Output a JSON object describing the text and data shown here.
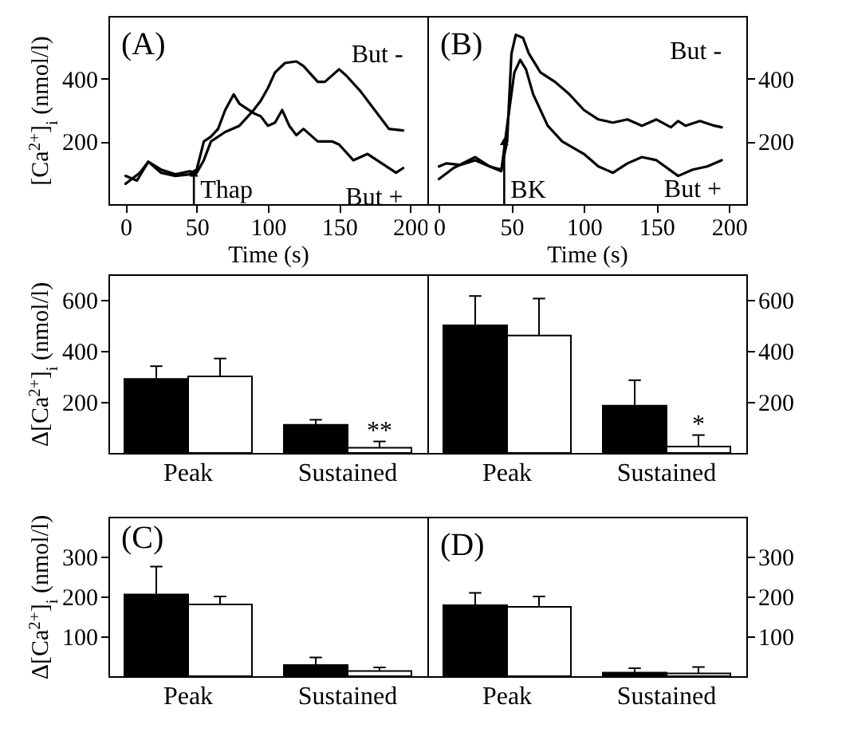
{
  "chart_data": [
    {
      "type": "line",
      "title": "(A)",
      "xlabel": "Time (s)",
      "ylabel": "[Ca$^{2+}$]$_{i}$ (nmol/l)",
      "xlim": [
        -12,
        212
      ],
      "xticks": [
        0,
        50,
        100,
        150,
        200
      ],
      "ylim": [
        0,
        600
      ],
      "yticks": [
        200,
        400
      ],
      "series": [
        {
          "name": "But -",
          "color": "#000000",
          "x": [
            0,
            10,
            16,
            25,
            35,
            45,
            50,
            55,
            60,
            70,
            80,
            90,
            95,
            100,
            105,
            112,
            120,
            125,
            135,
            140,
            150,
            155,
            165,
            175,
            185,
            195
          ],
          "values": [
            65,
            100,
            135,
            110,
            95,
            105,
            100,
            140,
            200,
            230,
            250,
            300,
            330,
            370,
            420,
            450,
            455,
            440,
            390,
            390,
            430,
            410,
            360,
            300,
            240,
            235
          ]
        },
        {
          "name": "But +",
          "color": "#000000",
          "x": [
            0,
            8,
            16,
            25,
            35,
            45,
            50,
            55,
            60,
            65,
            70,
            76,
            80,
            90,
            95,
            100,
            105,
            110,
            115,
            120,
            125,
            135,
            145,
            150,
            160,
            170,
            180,
            190,
            195
          ],
          "values": [
            90,
            75,
            135,
            100,
            90,
            95,
            110,
            200,
            215,
            240,
            300,
            350,
            320,
            290,
            280,
            250,
            260,
            300,
            250,
            220,
            240,
            200,
            200,
            190,
            140,
            160,
            130,
            100,
            115
          ]
        }
      ],
      "annotations": [
        {
          "text": "Thap",
          "x": 48,
          "y": 100
        }
      ]
    },
    {
      "type": "line",
      "title": "(B)",
      "xlabel": "Time (s)",
      "xlim": [
        -8,
        212
      ],
      "xticks": [
        0,
        50,
        100,
        150,
        200
      ],
      "ylim": [
        0,
        600
      ],
      "yticks": [
        200,
        400
      ],
      "series": [
        {
          "name": "But -",
          "color": "#000000",
          "x": [
            0,
            5,
            15,
            25,
            35,
            43,
            47,
            50,
            53,
            58,
            62,
            70,
            80,
            90,
            100,
            110,
            120,
            130,
            140,
            150,
            160,
            165,
            170,
            180,
            190,
            195
          ],
          "values": [
            120,
            130,
            125,
            140,
            120,
            110,
            200,
            480,
            540,
            530,
            480,
            420,
            390,
            350,
            300,
            270,
            260,
            270,
            250,
            270,
            245,
            265,
            250,
            265,
            250,
            245
          ]
        },
        {
          "name": "But +",
          "color": "#000000",
          "x": [
            0,
            10,
            25,
            35,
            43,
            47,
            52,
            56,
            60,
            65,
            75,
            85,
            100,
            110,
            120,
            130,
            140,
            150,
            165,
            175,
            185,
            195
          ],
          "values": [
            80,
            115,
            150,
            120,
            105,
            250,
            420,
            460,
            430,
            350,
            250,
            200,
            160,
            120,
            100,
            130,
            150,
            140,
            90,
            110,
            120,
            140
          ]
        }
      ],
      "annotations": [
        {
          "text": "BK",
          "x": 45,
          "y": 200
        }
      ]
    },
    {
      "type": "bar",
      "ylabel": "Δ[Ca$^{2+}$]$_{i}$ (nmol/l)",
      "categories": [
        "Peak",
        "Sustained"
      ],
      "ylim": [
        0,
        700
      ],
      "yticks": [
        200,
        400,
        600
      ],
      "series": [
        {
          "color": "#000000",
          "values": [
            290,
            110
          ],
          "errors": [
            [
              290,
              340
            ],
            [
              110,
              130
            ]
          ]
        },
        {
          "color": "#ffffff",
          "values": [
            300,
            20
          ],
          "errors": [
            [
              300,
              370
            ],
            [
              20,
              45
            ]
          ]
        }
      ],
      "annotations": [
        {
          "text": "**",
          "x": "Sustained",
          "y": 50
        }
      ]
    },
    {
      "type": "bar",
      "categories": [
        "Peak",
        "Sustained"
      ],
      "ylim": [
        0,
        700
      ],
      "yticks": [
        200,
        400,
        600
      ],
      "series": [
        {
          "color": "#000000",
          "values": [
            500,
            185
          ],
          "errors": [
            [
              500,
              615
            ],
            [
              185,
              285
            ]
          ]
        },
        {
          "color": "#ffffff",
          "values": [
            460,
            25
          ],
          "errors": [
            [
              460,
              605
            ],
            [
              25,
              70
            ]
          ]
        }
      ],
      "annotations": [
        {
          "text": "*",
          "x": "Sustained",
          "y": 75
        }
      ]
    },
    {
      "type": "bar",
      "title": "(C)",
      "ylabel": "Δ[Ca$^{2+}$]$_{i}$ (nmol/l)",
      "categories": [
        "Peak",
        "Sustained"
      ],
      "ylim": [
        0,
        400
      ],
      "yticks": [
        100,
        200,
        300
      ],
      "series": [
        {
          "color": "#000000",
          "values": [
            205,
            28
          ],
          "errors": [
            [
              205,
              275
            ],
            [
              28,
              47
            ]
          ]
        },
        {
          "color": "#ffffff",
          "values": [
            180,
            13
          ],
          "errors": [
            [
              180,
              200
            ],
            [
              13,
              22
            ]
          ]
        }
      ]
    },
    {
      "type": "bar",
      "title": "(D)",
      "categories": [
        "Peak",
        "Sustained"
      ],
      "ylim": [
        0,
        400
      ],
      "yticks": [
        100,
        200,
        300
      ],
      "series": [
        {
          "color": "#000000",
          "values": [
            178,
            9
          ],
          "errors": [
            [
              178,
              209
            ],
            [
              9,
              20
            ]
          ]
        },
        {
          "color": "#ffffff",
          "values": [
            174,
            7
          ],
          "errors": [
            [
              174,
              200
            ],
            [
              7,
              23
            ]
          ]
        }
      ]
    }
  ]
}
